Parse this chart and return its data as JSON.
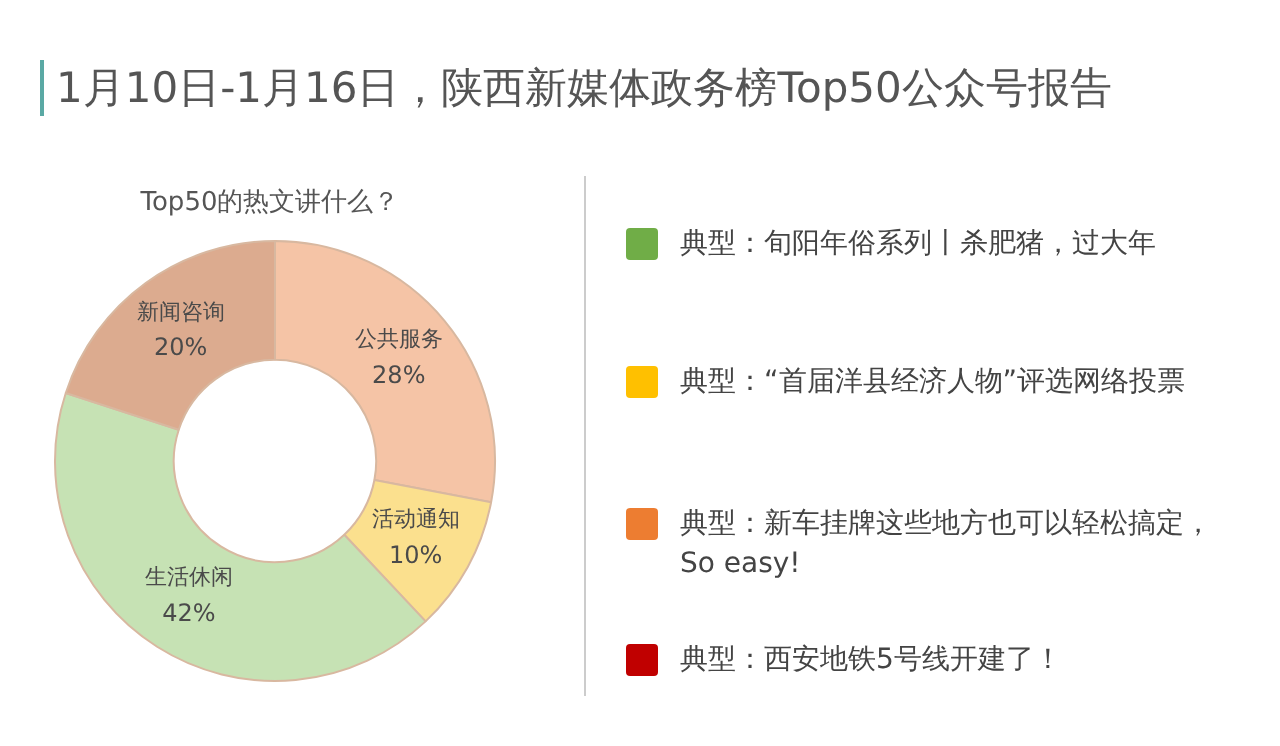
{
  "chart_data": {
    "type": "donut",
    "title": "1月10日-1月16日，陕西新媒体政务榜Top50公众号报告",
    "subtitle": "Top50的热文讲什么？",
    "categories": [
      "公共服务",
      "活动通知",
      "生活休闲",
      "新闻咨询"
    ],
    "values": [
      28,
      10,
      42,
      20
    ],
    "colors": [
      "#f5c4a6",
      "#fbe08e",
      "#c6e2b4",
      "#dcab8f"
    ],
    "value_labels": [
      "28%",
      "10%",
      "42%",
      "20%"
    ],
    "legend": false,
    "annotations": [
      "典型：旬阳年俗系列丨杀肥猪，过大年",
      "典型：“首届洋县经济人物”评选网络投票",
      "典型：新车挂牌这些地方也可以轻松搞定，So easy!",
      "典型：西安地铁5号线开建了！"
    ]
  }
}
